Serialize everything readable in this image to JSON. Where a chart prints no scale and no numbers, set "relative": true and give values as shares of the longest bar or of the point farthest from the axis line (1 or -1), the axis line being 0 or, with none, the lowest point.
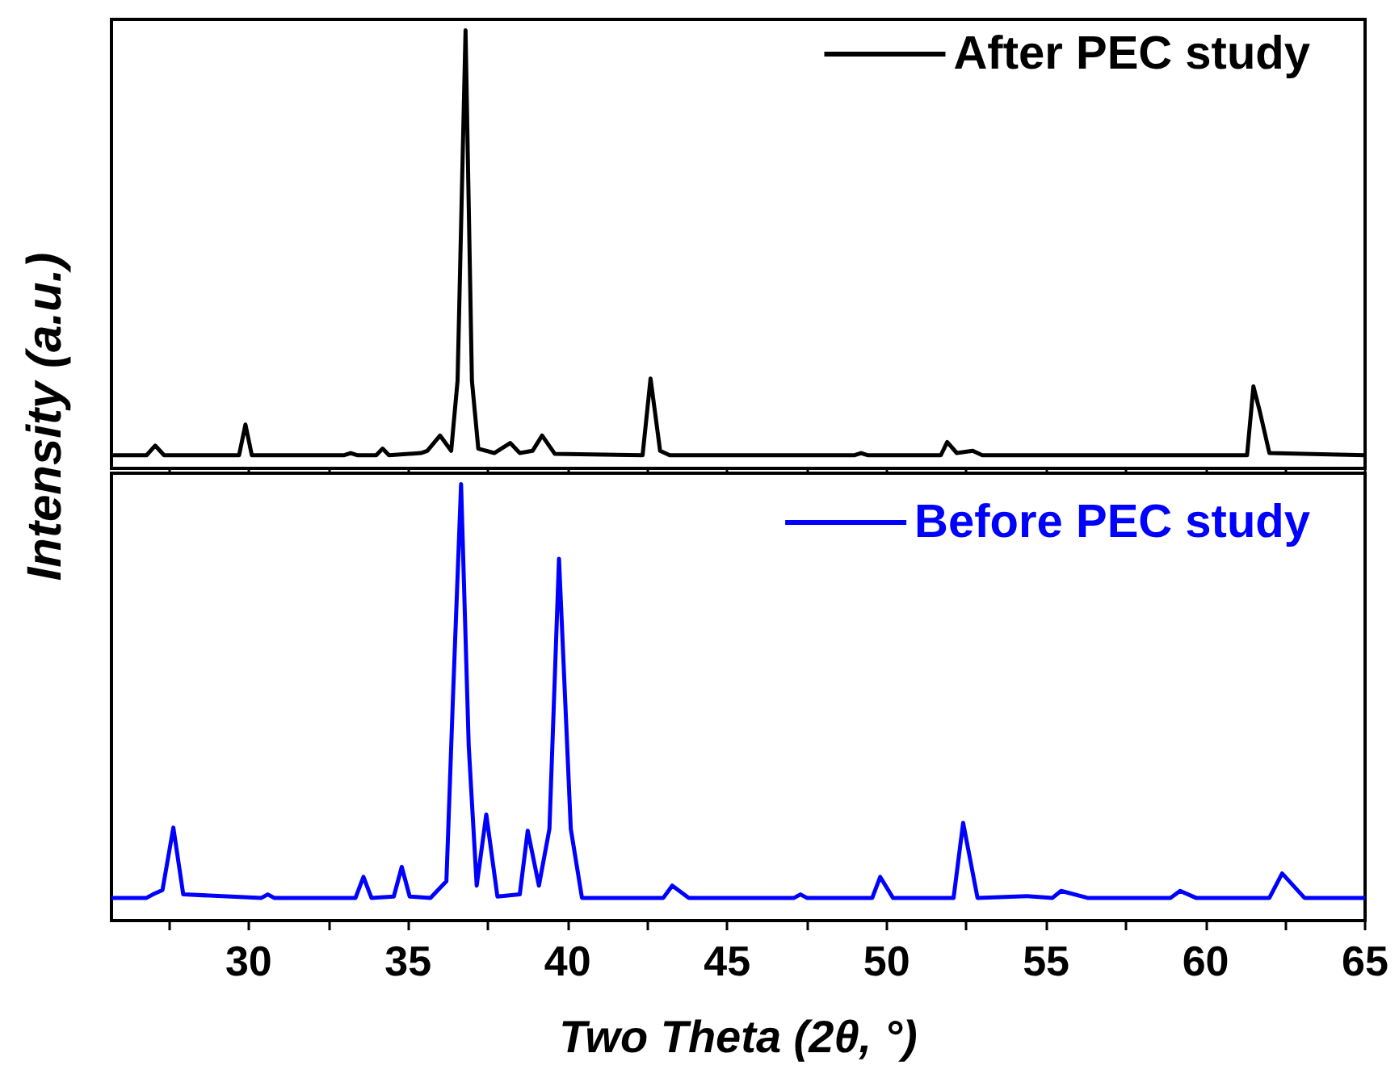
{
  "chart_data": [
    {
      "type": "line",
      "ylabel": "Intensity (a.u.)",
      "relative": true,
      "xlim": [
        25.7,
        65
      ],
      "xticks": [
        {
          "value": 27.5,
          "label": null
        },
        {
          "value": 30,
          "label": null
        },
        {
          "value": 32.5,
          "label": null
        },
        {
          "value": 35,
          "label": null
        },
        {
          "value": 37.5,
          "label": null
        },
        {
          "value": 40,
          "label": null
        },
        {
          "value": 42.5,
          "label": null
        },
        {
          "value": 45,
          "label": null
        },
        {
          "value": 47.5,
          "label": null
        },
        {
          "value": 50,
          "label": null
        },
        {
          "value": 52.5,
          "label": null
        },
        {
          "value": 55,
          "label": null
        },
        {
          "value": 57.5,
          "label": null
        },
        {
          "value": 60,
          "label": null
        },
        {
          "value": 62.5,
          "label": null
        },
        {
          "value": 65,
          "label": null
        }
      ],
      "tick_labels": false,
      "legend": "top right",
      "series": [
        {
          "name": "After PEC study",
          "color": "#000000",
          "x": [
            25.7,
            26.8,
            27.07,
            27.35,
            29.7,
            29.9,
            30.1,
            33.0,
            33.2,
            33.4,
            34.0,
            34.2,
            34.4,
            35.4,
            35.6,
            36.0,
            36.35,
            36.55,
            36.8,
            37.0,
            37.2,
            37.7,
            38.2,
            38.5,
            38.9,
            39.2,
            39.6,
            42.35,
            42.6,
            42.9,
            43.2,
            49.0,
            49.2,
            49.4,
            51.7,
            51.9,
            52.2,
            52.7,
            53.0,
            61.3,
            61.5,
            61.7,
            62.0,
            65
          ],
          "values": [
            0.03,
            0.03,
            0.052,
            0.03,
            0.03,
            0.1,
            0.03,
            0.03,
            0.035,
            0.03,
            0.03,
            0.045,
            0.03,
            0.035,
            0.04,
            0.075,
            0.04,
            0.2,
            1,
            0.2,
            0.045,
            0.035,
            0.058,
            0.035,
            0.04,
            0.075,
            0.033,
            0.03,
            0.205,
            0.04,
            0.03,
            0.03,
            0.035,
            0.03,
            0.03,
            0.06,
            0.035,
            0.04,
            0.03,
            0.03,
            0.187,
            0.13,
            0.035,
            0.03
          ]
        }
      ]
    },
    {
      "type": "line",
      "xlabel": "Two Theta (2θ, °)",
      "relative": true,
      "xlim": [
        25.7,
        65
      ],
      "xticks": [
        {
          "value": 27.5,
          "label": null
        },
        30,
        {
          "value": 32.5,
          "label": null
        },
        35,
        {
          "value": 37.5,
          "label": null
        },
        40,
        {
          "value": 42.5,
          "label": null
        },
        45,
        {
          "value": 47.5,
          "label": null
        },
        50,
        {
          "value": 52.5,
          "label": null
        },
        55,
        {
          "value": 57.5,
          "label": null
        },
        60,
        {
          "value": 62.5,
          "label": null
        },
        65
      ],
      "tick_labels": "x",
      "legend": "top right",
      "series": [
        {
          "name": "Before PEC study",
          "color": "#0000ff",
          "x": [
            25.7,
            26.8,
            27.0,
            27.3,
            27.64,
            27.95,
            30.4,
            30.6,
            30.8,
            33.35,
            33.6,
            33.85,
            34.55,
            34.8,
            35.05,
            35.7,
            36.2,
            36.4,
            36.66,
            36.9,
            37.15,
            37.45,
            37.8,
            38.5,
            38.75,
            39.1,
            39.43,
            39.73,
            40.1,
            40.45,
            43.0,
            43.28,
            43.8,
            47.1,
            47.3,
            47.5,
            49.55,
            49.8,
            50.2,
            52.1,
            52.4,
            52.85,
            54.4,
            55.2,
            55.47,
            56.3,
            58.9,
            59.2,
            59.7,
            62.0,
            62.4,
            63.1,
            65
          ],
          "values": [
            0.052,
            0.052,
            0.06,
            0.07,
            0.213,
            0.06,
            0.052,
            0.06,
            0.052,
            0.052,
            0.1,
            0.052,
            0.055,
            0.123,
            0.055,
            0.052,
            0.09,
            0.5,
            1,
            0.4,
            0.08,
            0.243,
            0.055,
            0.06,
            0.206,
            0.08,
            0.21,
            0.829,
            0.21,
            0.052,
            0.052,
            0.08,
            0.052,
            0.052,
            0.06,
            0.052,
            0.052,
            0.1,
            0.052,
            0.052,
            0.224,
            0.052,
            0.056,
            0.052,
            0.068,
            0.052,
            0.052,
            0.068,
            0.052,
            0.052,
            0.108,
            0.052,
            0.052
          ]
        }
      ]
    }
  ]
}
